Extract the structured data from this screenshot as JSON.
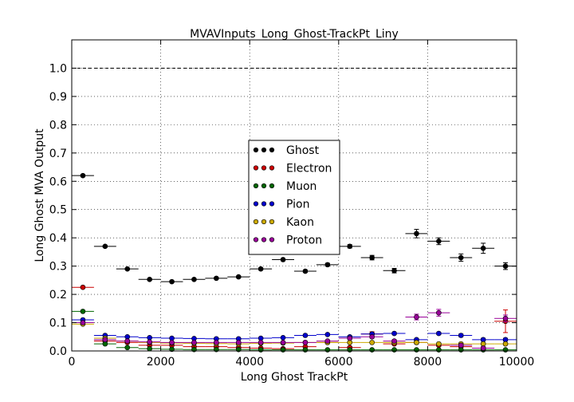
{
  "chart_data": {
    "type": "scatter",
    "title": "MVAVInputs_Long_Ghost-TrackPt_Liny",
    "xlabel": "Long Ghost TrackPt",
    "ylabel": "Long Ghost MVA Output",
    "xlim": [
      0,
      10000
    ],
    "ylim": [
      0,
      1.1
    ],
    "xticks": [
      "0",
      "2000",
      "4000",
      "6000",
      "8000",
      "10000"
    ],
    "yticks": [
      "0.0",
      "0.1",
      "0.2",
      "0.3",
      "0.4",
      "0.5",
      "0.6",
      "0.7",
      "0.8",
      "0.9",
      "1.0"
    ],
    "grid": true,
    "reference_line": 1.0,
    "legend_position": "center",
    "bin_width": 500,
    "x": [
      250,
      750,
      1250,
      1750,
      2250,
      2750,
      3250,
      3750,
      4250,
      4750,
      5250,
      5750,
      6250,
      6750,
      7250,
      7750,
      8250,
      8750,
      9250,
      9750
    ],
    "series": [
      {
        "name": "Ghost",
        "color": "#000000",
        "values": [
          0.62,
          0.37,
          0.29,
          0.253,
          0.245,
          0.253,
          0.257,
          0.262,
          0.29,
          0.323,
          0.282,
          0.305,
          0.37,
          0.33,
          0.284,
          0.415,
          0.388,
          0.33,
          0.363,
          0.3
        ],
        "errors": [
          0.004,
          0.003,
          0.003,
          0.003,
          0.003,
          0.003,
          0.003,
          0.003,
          0.004,
          0.004,
          0.004,
          0.005,
          0.006,
          0.008,
          0.008,
          0.015,
          0.012,
          0.013,
          0.018,
          0.012
        ]
      },
      {
        "name": "Electron",
        "color": "#cc0000",
        "values": [
          0.225,
          0.035,
          0.03,
          0.02,
          0.02,
          0.015,
          0.015,
          0.012,
          0.01,
          0.008,
          0.015,
          0.03,
          0.012,
          0.06,
          0.025,
          0.03,
          0.02,
          0.015,
          0.01,
          0.105
        ],
        "errors": [
          0.003,
          0.002,
          0.002,
          0.002,
          0.002,
          0.002,
          0.002,
          0.002,
          0.002,
          0.002,
          0.002,
          0.003,
          0.003,
          0.008,
          0.004,
          0.005,
          0.004,
          0.004,
          0.005,
          0.04
        ]
      },
      {
        "name": "Muon",
        "color": "#006600",
        "values": [
          0.14,
          0.025,
          0.012,
          0.008,
          0.006,
          0.005,
          0.005,
          0.005,
          0.004,
          0.004,
          0.004,
          0.004,
          0.004,
          0.004,
          0.004,
          0.004,
          0.004,
          0.004,
          0.004,
          0.004
        ],
        "errors": [
          0.002,
          0.001,
          0.001,
          0.001,
          0.001,
          0.001,
          0.001,
          0.001,
          0.001,
          0.001,
          0.001,
          0.001,
          0.001,
          0.001,
          0.001,
          0.001,
          0.001,
          0.001,
          0.001,
          0.001
        ]
      },
      {
        "name": "Pion",
        "color": "#0000cc",
        "values": [
          0.11,
          0.055,
          0.05,
          0.047,
          0.045,
          0.044,
          0.043,
          0.043,
          0.045,
          0.047,
          0.055,
          0.058,
          0.05,
          0.06,
          0.062,
          0.04,
          0.062,
          0.055,
          0.04,
          0.04
        ],
        "errors": [
          0.002,
          0.002,
          0.002,
          0.002,
          0.002,
          0.002,
          0.002,
          0.002,
          0.002,
          0.002,
          0.003,
          0.003,
          0.003,
          0.004,
          0.004,
          0.004,
          0.004,
          0.005,
          0.005,
          0.005
        ]
      },
      {
        "name": "Kaon",
        "color": "#ccaa00",
        "values": [
          0.095,
          0.045,
          0.035,
          0.03,
          0.028,
          0.027,
          0.026,
          0.025,
          0.027,
          0.028,
          0.03,
          0.03,
          0.03,
          0.03,
          0.03,
          0.03,
          0.025,
          0.025,
          0.025,
          0.025
        ],
        "errors": [
          0.002,
          0.002,
          0.002,
          0.002,
          0.002,
          0.002,
          0.002,
          0.002,
          0.002,
          0.002,
          0.002,
          0.002,
          0.003,
          0.003,
          0.003,
          0.003,
          0.003,
          0.003,
          0.004,
          0.004
        ]
      },
      {
        "name": "Proton",
        "color": "#990099",
        "values": [
          0.1,
          0.04,
          0.035,
          0.032,
          0.03,
          0.03,
          0.03,
          0.03,
          0.03,
          0.03,
          0.03,
          0.035,
          0.045,
          0.05,
          0.035,
          0.12,
          0.135,
          0.02,
          0.01,
          0.115
        ],
        "errors": [
          0.002,
          0.002,
          0.002,
          0.002,
          0.002,
          0.002,
          0.002,
          0.002,
          0.002,
          0.002,
          0.002,
          0.003,
          0.004,
          0.005,
          0.005,
          0.01,
          0.012,
          0.005,
          0.004,
          0.012
        ]
      }
    ]
  }
}
